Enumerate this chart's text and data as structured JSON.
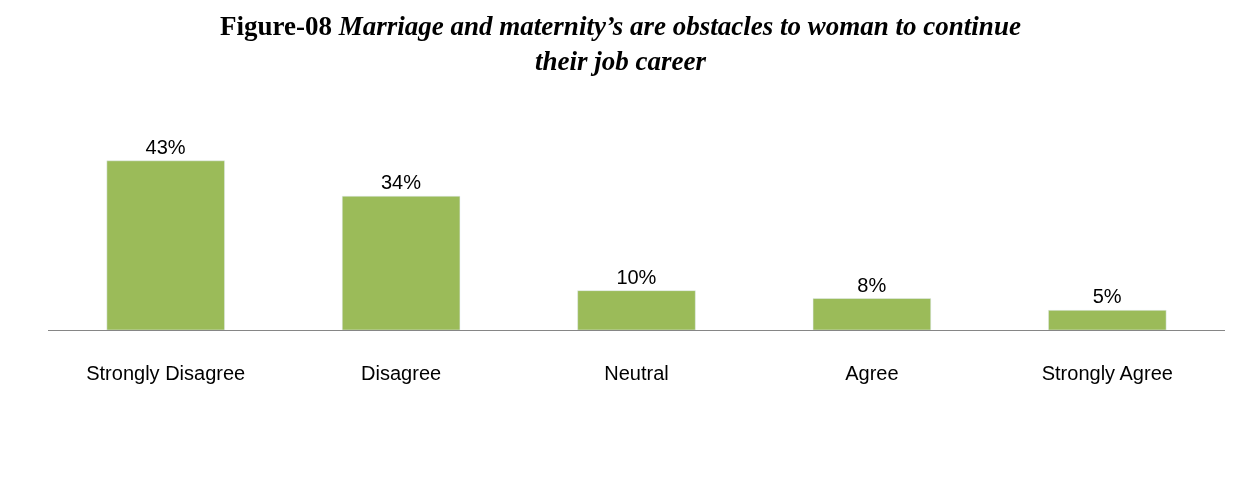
{
  "chart_data": {
    "type": "bar",
    "title": "Figure-08 Marriage and maternity’s are obstacles to woman to continue their job career",
    "categories": [
      "Strongly Disagree",
      "Disagree",
      "Neutral",
      "Agree",
      "Strongly Agree"
    ],
    "series": [
      {
        "color": "#9bbb59",
        "values": [
          43,
          34,
          10,
          8,
          5
        ],
        "value_labels": [
          "43%",
          "34%",
          "10%",
          "8%",
          "5%"
        ]
      }
    ],
    "legend": false
  }
}
